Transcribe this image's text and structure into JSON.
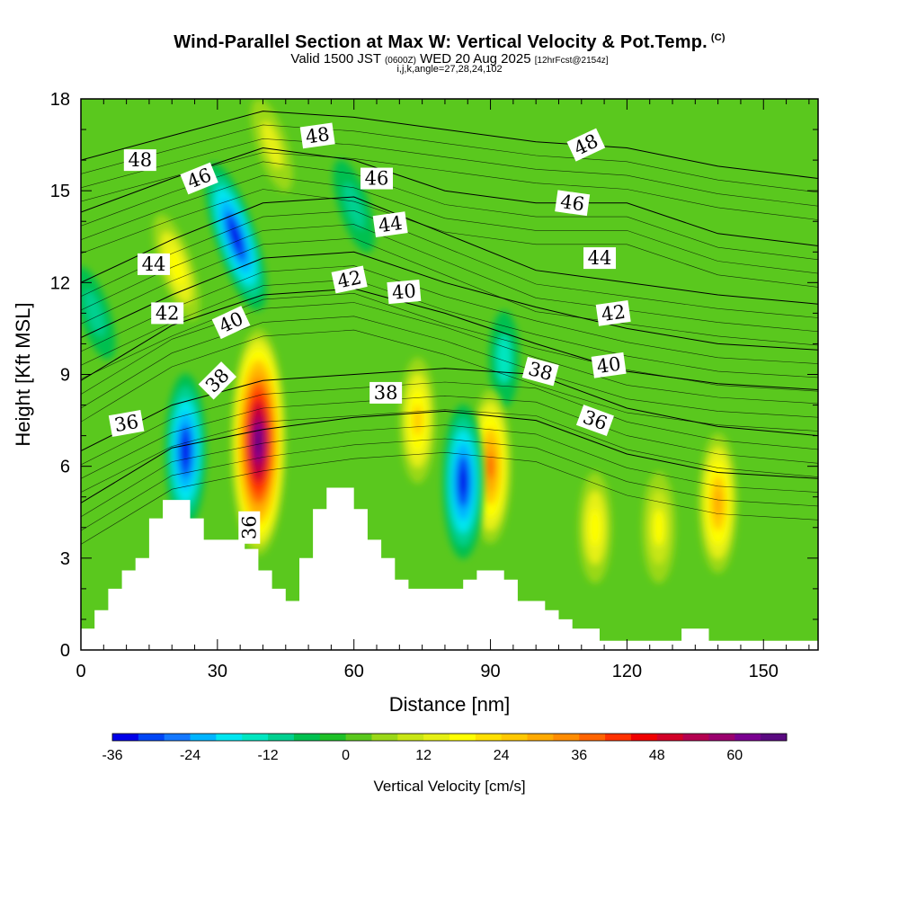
{
  "header": {
    "title": "Wind-Parallel Section at Max W: Vertical Velocity & Pot.Temp.",
    "title_unit": "(C)",
    "valid_prefix": "Valid 1500 JST",
    "valid_utc": "(0600Z)",
    "valid_date": "WED 20 Aug 2025",
    "forecast_info": "[12hrFcst@2154z]",
    "indices": "i,j,k,angle=27,28,24,102"
  },
  "chart_data": {
    "type": "heatmap",
    "title": "Wind-Parallel Section at Max W: Vertical Velocity & Pot.Temp.",
    "xlabel": "Distance [nm]",
    "ylabel": "Height [Kft MSL]",
    "xlim": [
      0,
      162
    ],
    "ylim": [
      0,
      18
    ],
    "xticks": [
      0,
      30,
      60,
      90,
      120,
      150
    ],
    "yticks": [
      0,
      3,
      6,
      9,
      12,
      15,
      18
    ],
    "colorbar": {
      "title": "Vertical Velocity [cm/s]",
      "min": -36,
      "max": 68,
      "step": 4,
      "tick_values": [
        -36,
        -24,
        -12,
        0,
        12,
        24,
        36,
        48,
        60
      ],
      "colors": [
        "#0000e8",
        "#0046f5",
        "#1478ff",
        "#00b4ff",
        "#00e6f0",
        "#00e6c0",
        "#00d090",
        "#00c050",
        "#1ec028",
        "#5ac81e",
        "#9ad818",
        "#c8e614",
        "#e6f014",
        "#ffff00",
        "#ffe000",
        "#ffc800",
        "#ffaa00",
        "#ff8c00",
        "#ff6400",
        "#ff3200",
        "#f00000",
        "#d20028",
        "#b40050",
        "#9a006e",
        "#7a0090",
        "#5a0a80"
      ]
    },
    "w_features": [
      {
        "kind": "max",
        "x": 39,
        "z": 6.8,
        "value": 66
      },
      {
        "kind": "max",
        "x": 74,
        "z": 7.5,
        "value": 24
      },
      {
        "kind": "max",
        "x": 90,
        "z": 6.0,
        "value": 36
      },
      {
        "kind": "max",
        "x": 140,
        "z": 4.8,
        "value": 30
      },
      {
        "kind": "max",
        "x": 113,
        "z": 4.0,
        "value": 18
      },
      {
        "kind": "max",
        "x": 127,
        "z": 4.0,
        "value": 16
      },
      {
        "kind": "max",
        "x": 21,
        "z": 12.5,
        "value": 18
      },
      {
        "kind": "max",
        "x": 42,
        "z": 16.5,
        "value": 12
      },
      {
        "kind": "min",
        "x": 34,
        "z": 13.5,
        "value": -36
      },
      {
        "kind": "min",
        "x": 23,
        "z": 6.5,
        "value": -34
      },
      {
        "kind": "min",
        "x": 84,
        "z": 5.5,
        "value": -36
      },
      {
        "kind": "min",
        "x": 60,
        "z": 14.5,
        "value": -12
      },
      {
        "kind": "min",
        "x": 93,
        "z": 9.5,
        "value": -14
      },
      {
        "kind": "min",
        "x": 3,
        "z": 11,
        "value": -10
      }
    ],
    "theta_contours": [
      {
        "value": 36,
        "heights": [
          [
            0,
            4.8
          ],
          [
            20,
            6.6
          ],
          [
            40,
            7.2
          ],
          [
            60,
            7.6
          ],
          [
            80,
            7.8
          ],
          [
            100,
            7.5
          ],
          [
            120,
            6.4
          ],
          [
            140,
            5.8
          ],
          [
            162,
            5.6
          ]
        ]
      },
      {
        "value": 38,
        "heights": [
          [
            0,
            6.5
          ],
          [
            20,
            8.0
          ],
          [
            40,
            8.8
          ],
          [
            60,
            9.0
          ],
          [
            80,
            9.2
          ],
          [
            100,
            9.0
          ],
          [
            120,
            7.9
          ],
          [
            140,
            7.3
          ],
          [
            162,
            7.0
          ]
        ]
      },
      {
        "value": 40,
        "heights": [
          [
            0,
            8.8
          ],
          [
            20,
            10.6
          ],
          [
            40,
            11.6
          ],
          [
            60,
            11.8
          ],
          [
            80,
            11.0
          ],
          [
            100,
            10.0
          ],
          [
            120,
            9.1
          ],
          [
            140,
            8.7
          ],
          [
            162,
            8.5
          ]
        ]
      },
      {
        "value": 42,
        "heights": [
          [
            0,
            10.2
          ],
          [
            20,
            11.6
          ],
          [
            40,
            12.8
          ],
          [
            60,
            13.0
          ],
          [
            80,
            12.0
          ],
          [
            100,
            11.2
          ],
          [
            120,
            10.5
          ],
          [
            140,
            10.0
          ],
          [
            162,
            9.8
          ]
        ]
      },
      {
        "value": 44,
        "heights": [
          [
            0,
            12.0
          ],
          [
            20,
            13.4
          ],
          [
            40,
            14.6
          ],
          [
            60,
            14.8
          ],
          [
            80,
            13.6
          ],
          [
            100,
            12.4
          ],
          [
            120,
            12.0
          ],
          [
            140,
            11.6
          ],
          [
            162,
            11.3
          ]
        ]
      },
      {
        "value": 46,
        "heights": [
          [
            0,
            14.3
          ],
          [
            20,
            15.4
          ],
          [
            40,
            16.4
          ],
          [
            60,
            16.0
          ],
          [
            80,
            15.0
          ],
          [
            100,
            14.6
          ],
          [
            120,
            14.6
          ],
          [
            140,
            13.6
          ],
          [
            162,
            13.2
          ]
        ]
      },
      {
        "value": 48,
        "heights": [
          [
            0,
            16.0
          ],
          [
            20,
            16.8
          ],
          [
            40,
            17.6
          ],
          [
            60,
            17.4
          ],
          [
            80,
            17.0
          ],
          [
            100,
            16.6
          ],
          [
            120,
            16.4
          ],
          [
            140,
            15.8
          ],
          [
            162,
            15.4
          ]
        ]
      }
    ],
    "contour_labels": [
      {
        "text": "48",
        "x": 13,
        "z": 16.0,
        "angle": 0
      },
      {
        "text": "46",
        "x": 26,
        "z": 15.4,
        "angle": -22
      },
      {
        "text": "48",
        "x": 52,
        "z": 16.8,
        "angle": -8
      },
      {
        "text": "46",
        "x": 65,
        "z": 15.4,
        "angle": 0
      },
      {
        "text": "44",
        "x": 68,
        "z": 13.9,
        "angle": -8
      },
      {
        "text": "48",
        "x": 111,
        "z": 16.5,
        "angle": -25
      },
      {
        "text": "46",
        "x": 108,
        "z": 14.6,
        "angle": 8
      },
      {
        "text": "44",
        "x": 16,
        "z": 12.6,
        "angle": 0
      },
      {
        "text": "42",
        "x": 59,
        "z": 12.1,
        "angle": -12
      },
      {
        "text": "40",
        "x": 71,
        "z": 11.7,
        "angle": -5
      },
      {
        "text": "44",
        "x": 114,
        "z": 12.8,
        "angle": 0
      },
      {
        "text": "42",
        "x": 19,
        "z": 11.0,
        "angle": 0
      },
      {
        "text": "40",
        "x": 33,
        "z": 10.7,
        "angle": -25
      },
      {
        "text": "42",
        "x": 117,
        "z": 11.0,
        "angle": -8
      },
      {
        "text": "38",
        "x": 30,
        "z": 8.8,
        "angle": -45
      },
      {
        "text": "38",
        "x": 67,
        "z": 8.4,
        "angle": 0
      },
      {
        "text": "38",
        "x": 101,
        "z": 9.1,
        "angle": 15
      },
      {
        "text": "40",
        "x": 116,
        "z": 9.3,
        "angle": -8
      },
      {
        "text": "36",
        "x": 10,
        "z": 7.4,
        "angle": -10
      },
      {
        "text": "36",
        "x": 113,
        "z": 7.5,
        "angle": 20
      },
      {
        "text": "36",
        "x": 37,
        "z": 4.0,
        "angle": -90
      }
    ],
    "terrain_profile": [
      [
        0,
        0.7
      ],
      [
        3,
        1.3
      ],
      [
        6,
        2.0
      ],
      [
        9,
        2.6
      ],
      [
        12,
        3.0
      ],
      [
        15,
        4.3
      ],
      [
        18,
        4.9
      ],
      [
        24,
        4.3
      ],
      [
        27,
        3.6
      ],
      [
        36,
        3.3
      ],
      [
        39,
        2.6
      ],
      [
        42,
        2.0
      ],
      [
        45,
        1.6
      ],
      [
        48,
        3.0
      ],
      [
        51,
        4.6
      ],
      [
        54,
        5.3
      ],
      [
        60,
        4.6
      ],
      [
        63,
        3.6
      ],
      [
        66,
        3.0
      ],
      [
        69,
        2.3
      ],
      [
        72,
        2.0
      ],
      [
        84,
        2.3
      ],
      [
        87,
        2.6
      ],
      [
        93,
        2.3
      ],
      [
        96,
        1.6
      ],
      [
        102,
        1.3
      ],
      [
        105,
        1.0
      ],
      [
        108,
        0.7
      ],
      [
        114,
        0.3
      ],
      [
        132,
        0.7
      ],
      [
        138,
        0.3
      ],
      [
        162,
        0.3
      ]
    ]
  }
}
